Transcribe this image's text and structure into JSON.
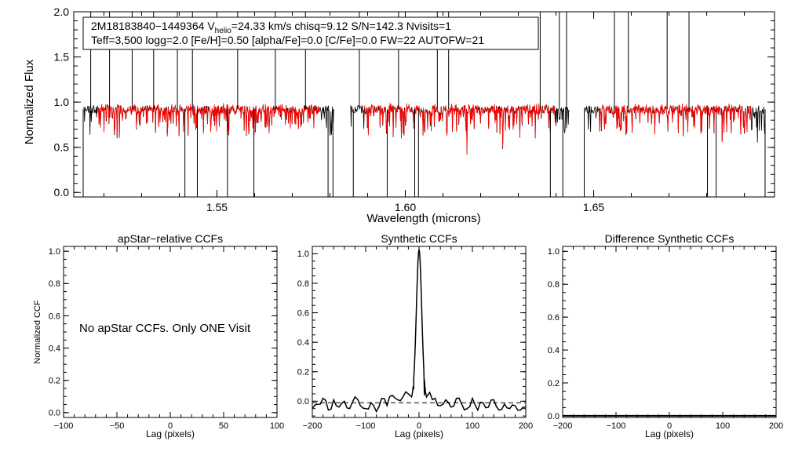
{
  "colors": {
    "observed": "#000000",
    "model": "#ff0000",
    "axis": "#000000"
  },
  "header": {
    "line1_star": "2M18183840−1449364",
    "line1_v": "V",
    "line1_helio": "helio",
    "line1_rest": "=24.33 km/s  chisq=9.12  S/N=142.3  Nvisits=1",
    "line2": "Teff=3,500 logg=2.0 [Fe/H]=0.50 [alpha/Fe]=0.0 [C/Fe]=0.0 FW=22 AUTOFW=21"
  },
  "chart_data": [
    {
      "id": "spectrum",
      "type": "line",
      "xlabel": "Wavelength (microns)",
      "ylabel": "Normalized Flux",
      "xlim": [
        1.512,
        1.698
      ],
      "ylim": [
        -0.05,
        2.0
      ],
      "xticks": [
        1.55,
        1.6,
        1.65
      ],
      "xtick_labels": [
        "1.55",
        "1.60",
        "1.65"
      ],
      "yticks": [
        0.0,
        0.5,
        1.0,
        1.5,
        2.0
      ],
      "ytick_labels": [
        "0.0",
        "0.5",
        "1.0",
        "1.5",
        "2.0"
      ],
      "chip_ranges": [
        [
          1.5145,
          1.581
        ],
        [
          1.5855,
          1.6435
        ],
        [
          1.6475,
          1.6955
        ]
      ],
      "continuum_level": 0.92,
      "series": [
        {
          "name": "observed spectrum",
          "color": "#000000"
        },
        {
          "name": "best-fit model",
          "color": "#ff0000"
        }
      ],
      "spikes_up": [
        1.5165,
        1.5215,
        1.5275,
        1.5332,
        1.5395,
        1.5435,
        1.5555,
        1.5655,
        1.5735,
        1.5878,
        1.5982,
        1.6085,
        1.6115,
        1.6358,
        1.6409,
        1.6428,
        1.6555,
        1.6592,
        1.6695,
        1.6753
      ],
      "spikes_down": [
        1.5145,
        1.5415,
        1.5448,
        1.5528,
        1.5598,
        1.5795,
        1.5808,
        1.5862,
        1.5952,
        1.6025,
        1.6035,
        1.6385,
        1.6418,
        1.6475,
        1.6802,
        1.6825,
        1.6955
      ]
    },
    {
      "id": "apstar-ccf",
      "type": "line",
      "title": "apStar−relative CCFs",
      "xlabel": "Lag (pixels)",
      "ylabel": "Normalized CCF",
      "xlim": [
        -100,
        100
      ],
      "ylim": [
        -0.03,
        1.03
      ],
      "xticks": [
        -100,
        -50,
        0,
        50,
        100
      ],
      "xtick_labels": [
        "−100",
        "−50",
        "0",
        "50",
        "100"
      ],
      "yticks": [
        0.0,
        0.2,
        0.4,
        0.6,
        0.8,
        1.0
      ],
      "ytick_labels": [
        "0.0",
        "0.2",
        "0.4",
        "0.6",
        "0.8",
        "1.0"
      ],
      "annotation": "No apStar CCFs.  Only ONE Visit"
    },
    {
      "id": "synthetic-ccf",
      "type": "line",
      "title": "Synthetic CCFs",
      "xlabel": "Lag (pixels)",
      "xlim": [
        -200,
        200
      ],
      "ylim": [
        -0.11,
        1.05
      ],
      "xticks": [
        -200,
        -100,
        0,
        100,
        200
      ],
      "xtick_labels": [
        "−200",
        "−100",
        "0",
        "100",
        "200"
      ],
      "yticks": [
        0.0,
        0.2,
        0.4,
        0.6,
        0.8,
        1.0
      ],
      "ytick_labels": [
        "0.0",
        "0.2",
        "0.4",
        "0.6",
        "0.8",
        "1.0"
      ],
      "peak": {
        "x": 0,
        "y": 1.0,
        "width": 5
      },
      "baseline": -0.02,
      "dashed_level": -0.01,
      "x": [
        -200,
        -190,
        -180,
        -170,
        -160,
        -150,
        -140,
        -130,
        -120,
        -110,
        -100,
        -90,
        -80,
        -70,
        -60,
        -50,
        -40,
        -30,
        -20,
        -10,
        10,
        20,
        30,
        40,
        50,
        60,
        70,
        80,
        90,
        100,
        110,
        120,
        130,
        140,
        150,
        160,
        170,
        180,
        190,
        200
      ],
      "y": [
        -0.05,
        -0.02,
        0.02,
        -0.06,
        0.01,
        -0.04,
        0.0,
        -0.05,
        0.03,
        -0.03,
        -0.05,
        -0.01,
        -0.07,
        0.02,
        -0.03,
        0.04,
        0.01,
        0.03,
        0.05,
        0.08,
        0.04,
        0.06,
        0.02,
        -0.03,
        0.01,
        -0.04,
        0.02,
        -0.02,
        -0.05,
        0.02,
        -0.06,
        -0.01,
        -0.04,
        0.01,
        -0.06,
        -0.02,
        -0.05,
        -0.03,
        -0.06,
        -0.04
      ]
    },
    {
      "id": "difference-ccf",
      "type": "line",
      "title": "Difference Synthetic CCFs",
      "xlabel": "Lag (pixels)",
      "xlim": [
        -200,
        200
      ],
      "ylim": [
        -0.01,
        1.03
      ],
      "xticks": [
        -200,
        -100,
        0,
        100,
        200
      ],
      "xtick_labels": [
        "−200",
        "−100",
        "0",
        "100",
        "200"
      ],
      "yticks": [
        0.0,
        0.2,
        0.4,
        0.6,
        0.8,
        1.0
      ],
      "ytick_labels": [
        "0.0",
        "0.2",
        "0.4",
        "0.6",
        "0.8",
        "1.0"
      ],
      "values_level": 0.0
    }
  ]
}
